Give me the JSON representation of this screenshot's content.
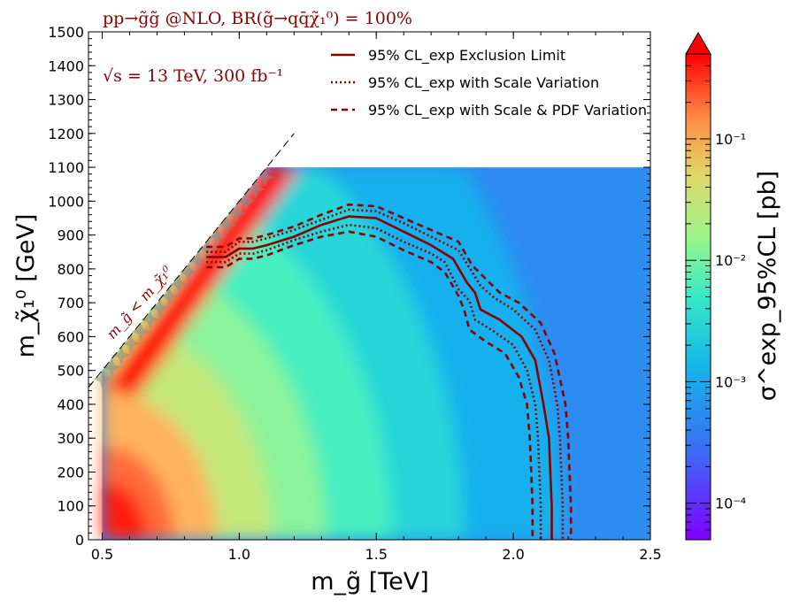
{
  "chart_data": {
    "type": "heatmap",
    "title": "pp→g̃g̃ @NLO, BR(g̃→qq̄χ̃₁⁰) = 100%",
    "subtitle": "√s = 13 TeV, 300 fb⁻¹",
    "xlabel": "m_g̃ [TeV]",
    "ylabel": "m_χ̃₁⁰ [GeV]",
    "xlim": [
      0.45,
      2.5
    ],
    "ylim": [
      0,
      1500
    ],
    "xticks": [
      0.5,
      1.0,
      1.5,
      2.0,
      2.5
    ],
    "xtick_labels": [
      "0.5",
      "1.0",
      "1.5",
      "2.0",
      "2.5"
    ],
    "yticks": [
      0,
      100,
      200,
      300,
      400,
      500,
      600,
      700,
      800,
      900,
      1000,
      1100,
      1200,
      1300,
      1400,
      1500
    ],
    "ytick_labels": [
      "0",
      "100",
      "200",
      "300",
      "400",
      "500",
      "600",
      "700",
      "800",
      "900",
      "1000",
      "1100",
      "1200",
      "1300",
      "1400",
      "1500"
    ],
    "heatmap_region": {
      "x_min": 0.5,
      "x_max": 2.5,
      "y_min": 0,
      "y_max": 1100
    },
    "colorbar": {
      "label": "σ^exp_95%CL [pb]",
      "scale": "log",
      "range": [
        5e-05,
        0.5
      ],
      "ticks": [
        0.0001,
        0.001,
        0.01,
        0.1
      ],
      "tick_labels": [
        "10⁻⁴",
        "10⁻³",
        "10⁻²",
        "10⁻¹"
      ],
      "extend": "max"
    },
    "diagonal": {
      "label": "m_g̃ < m_χ̃₁⁰",
      "points": [
        [
          0.45,
          450
        ],
        [
          1.2,
          1200
        ]
      ]
    },
    "legend": {
      "position": "top-right",
      "entries": [
        {
          "label": "95% CL_exp Exclusion Limit",
          "style": "solid"
        },
        {
          "label": "95% CL_exp with Scale Variation",
          "style": "dotted"
        },
        {
          "label": "95% CL_exp with Scale & PDF Variation",
          "style": "dashed"
        }
      ]
    },
    "series": [
      {
        "name": "95% CL_exp Exclusion Limit",
        "style": "solid",
        "color": "#8b0000",
        "x": [
          0.88,
          0.95,
          1.0,
          1.05,
          1.1,
          1.2,
          1.3,
          1.4,
          1.5,
          1.6,
          1.7,
          1.78,
          1.83,
          1.86,
          1.88,
          1.95,
          2.03,
          2.08,
          2.11,
          2.13,
          2.135,
          2.14,
          2.14
        ],
        "y": [
          835,
          835,
          860,
          860,
          870,
          895,
          930,
          955,
          950,
          910,
          870,
          830,
          760,
          730,
          680,
          650,
          600,
          530,
          400,
          300,
          200,
          100,
          0
        ]
      },
      {
        "name": "95% CL_exp with Scale Variation (upper)",
        "style": "dotted",
        "color": "#8b0000",
        "x": [
          0.88,
          0.95,
          1.0,
          1.05,
          1.1,
          1.2,
          1.3,
          1.4,
          1.5,
          1.6,
          1.7,
          1.8,
          1.85,
          1.88,
          1.93,
          2.0,
          2.08,
          2.13,
          2.16,
          2.17,
          2.175,
          2.18,
          2.18
        ],
        "y": [
          850,
          850,
          880,
          880,
          890,
          915,
          945,
          975,
          970,
          935,
          895,
          855,
          790,
          750,
          715,
          680,
          620,
          530,
          400,
          300,
          200,
          100,
          0
        ]
      },
      {
        "name": "95% CL_exp with Scale Variation (lower)",
        "style": "dotted",
        "color": "#8b0000",
        "x": [
          0.88,
          0.95,
          1.0,
          1.05,
          1.1,
          1.2,
          1.3,
          1.4,
          1.5,
          1.6,
          1.7,
          1.75,
          1.8,
          1.84,
          1.86,
          1.93,
          2.0,
          2.05,
          2.08,
          2.09,
          2.095,
          2.1,
          2.1
        ],
        "y": [
          820,
          820,
          845,
          845,
          855,
          885,
          910,
          930,
          920,
          880,
          845,
          820,
          740,
          705,
          650,
          615,
          575,
          500,
          400,
          300,
          200,
          100,
          0
        ]
      },
      {
        "name": "95% CL_exp with Scale & PDF Variation (upper)",
        "style": "dashed",
        "color": "#8b0000",
        "x": [
          0.88,
          0.95,
          1.0,
          1.05,
          1.1,
          1.2,
          1.3,
          1.4,
          1.5,
          1.6,
          1.7,
          1.8,
          1.85,
          1.9,
          1.95,
          2.02,
          2.1,
          2.15,
          2.19,
          2.2,
          2.205,
          2.21,
          2.21
        ],
        "y": [
          865,
          865,
          890,
          890,
          900,
          925,
          960,
          990,
          985,
          950,
          915,
          880,
          810,
          770,
          730,
          700,
          640,
          550,
          400,
          300,
          200,
          100,
          0
        ]
      },
      {
        "name": "95% CL_exp with Scale & PDF Variation (lower)",
        "style": "dashed",
        "color": "#8b0000",
        "x": [
          0.88,
          0.95,
          1.0,
          1.05,
          1.1,
          1.2,
          1.3,
          1.4,
          1.5,
          1.6,
          1.7,
          1.75,
          1.8,
          1.82,
          1.84,
          1.9,
          1.97,
          2.02,
          2.05,
          2.06,
          2.065,
          2.07,
          2.07
        ],
        "y": [
          805,
          805,
          830,
          830,
          840,
          870,
          895,
          910,
          895,
          855,
          820,
          790,
          720,
          680,
          620,
          585,
          550,
          480,
          400,
          300,
          200,
          100,
          0
        ]
      }
    ]
  }
}
